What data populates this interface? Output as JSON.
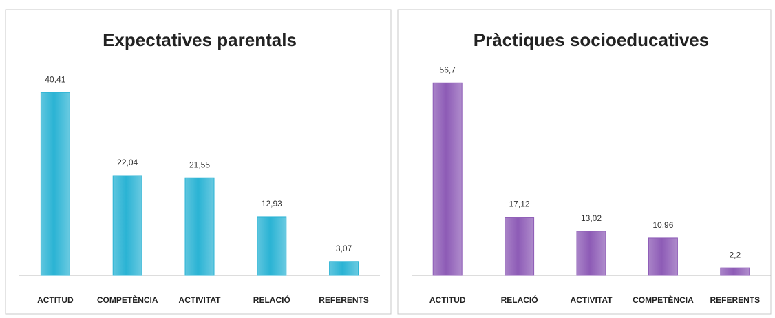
{
  "chart_data": [
    {
      "type": "bar",
      "title": "Expectatives parentals",
      "categories": [
        "ACTITUD",
        "COMPETÈNCIA",
        "ACTIVITAT",
        "RELACIÓ",
        "REFERENTS"
      ],
      "values": [
        40.41,
        22.04,
        21.55,
        12.93,
        3.07
      ],
      "value_labels": [
        "40,41",
        "22,04",
        "21,55",
        "12,93",
        "3,07"
      ],
      "color": "#2ab3d4",
      "ylim": [
        0,
        45
      ]
    },
    {
      "type": "bar",
      "title": "Pràctiques socioeducatives",
      "categories": [
        "ACTITUD",
        "RELACIÓ",
        "ACTIVITAT",
        "COMPETÈNCIA",
        "REFERENTS"
      ],
      "values": [
        56.7,
        17.12,
        13.02,
        10.96,
        2.2
      ],
      "value_labels": [
        "56,7",
        "17,12",
        "13,02",
        "10,96",
        "2,2"
      ],
      "color": "#8d5bb6",
      "ylim": [
        0,
        60
      ]
    }
  ]
}
